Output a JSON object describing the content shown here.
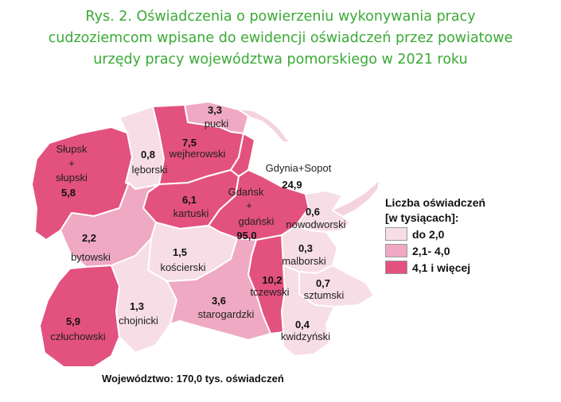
{
  "title": {
    "line1": "Rys. 2. Oświadczenia o powierzeniu wykonywania pracy",
    "line2": "cudzoziemcom wpisane do ewidencji oświadczeń przez powiatowe",
    "line3": "urzędy pracy województwa pomorskiego w 2021 roku"
  },
  "colors": {
    "low": "#f7dde6",
    "mid": "#efa9c3",
    "high": "#e3517f",
    "sea": "#f4d3df"
  },
  "regions": [
    {
      "id": "slupski",
      "label": [
        "Słupsk",
        "+",
        "słupski"
      ],
      "value": "5,8",
      "class": "high"
    },
    {
      "id": "leborski",
      "label": [
        "lęborski"
      ],
      "value": "0,8",
      "class": "low"
    },
    {
      "id": "wejherowski",
      "label": [
        "wejherowski"
      ],
      "value": "7,5",
      "class": "high"
    },
    {
      "id": "pucki",
      "label": [
        "pucki"
      ],
      "value": "3,3",
      "class": "mid"
    },
    {
      "id": "gdynia",
      "label": [
        "Gdynia+Sopot"
      ],
      "value": "24,9",
      "class": "high"
    },
    {
      "id": "kartuski",
      "label": [
        "kartuski"
      ],
      "value": "6,1",
      "class": "high"
    },
    {
      "id": "gdanski",
      "label": [
        "Gdańsk",
        "+",
        "gdański"
      ],
      "value": "95,0",
      "class": "high"
    },
    {
      "id": "nowodworski",
      "label": [
        "nowodworski"
      ],
      "value": "0,6",
      "class": "low"
    },
    {
      "id": "bytowski",
      "label": [
        "bytowski"
      ],
      "value": "2,2",
      "class": "mid"
    },
    {
      "id": "koscierski",
      "label": [
        "kościerski"
      ],
      "value": "1,5",
      "class": "low"
    },
    {
      "id": "malborski",
      "label": [
        "malborski"
      ],
      "value": "0,3",
      "class": "low"
    },
    {
      "id": "tczewski",
      "label": [
        "tczewski"
      ],
      "value": "10,2",
      "class": "high"
    },
    {
      "id": "sztumski",
      "label": [
        "sztumski"
      ],
      "value": "0,7",
      "class": "low"
    },
    {
      "id": "czluchowski",
      "label": [
        "człuchowski"
      ],
      "value": "5,9",
      "class": "high"
    },
    {
      "id": "chojnicki",
      "label": [
        "chojnicki"
      ],
      "value": "1,3",
      "class": "low"
    },
    {
      "id": "starogardzki",
      "label": [
        "starogardzki"
      ],
      "value": "3,6",
      "class": "mid"
    },
    {
      "id": "kwidzynski",
      "label": [
        "kwidzyński"
      ],
      "value": "0,4",
      "class": "low"
    }
  ],
  "legend": {
    "title_line1": "Liczba oświadczeń",
    "title_line2": "[w tysiącach]:",
    "items": [
      {
        "label": "do 2,0",
        "class": "low"
      },
      {
        "label": "2,1- 4,0",
        "class": "mid"
      },
      {
        "label": "4,1 i więcej",
        "class": "high"
      }
    ]
  },
  "footer": "Województwo: 170,0 tys. oświadczeń"
}
